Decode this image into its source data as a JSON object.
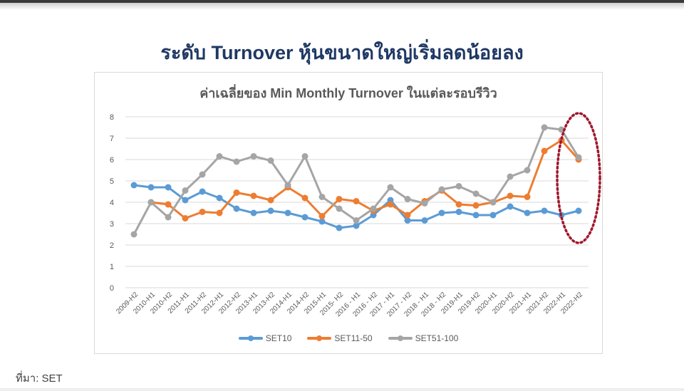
{
  "slide": {
    "title": "ระดับ Turnover หุ้นขนาดใหญ่เริ่มลดน้อยลง",
    "source": "ที่มา: SET",
    "title_color": "#1f3864"
  },
  "chart_data": {
    "type": "line",
    "title": "ค่าเฉลี่ยของ Min Monthly Turnover ในแต่ละรอบรีวิว",
    "xlabel": "",
    "ylabel": "",
    "ylim": [
      0,
      8
    ],
    "yticks": [
      0,
      1,
      2,
      3,
      4,
      5,
      6,
      7,
      8
    ],
    "grid": true,
    "legend_position": "bottom",
    "categories": [
      "2009-H2",
      "2010-H1",
      "2010-H2",
      "2011-H1",
      "2011-H2",
      "2012-H1",
      "2012-H2",
      "2013-H1",
      "2013-H2",
      "2014-H1",
      "2014-H2",
      "2015-H1",
      "2015- H2",
      "2016 - H1",
      "2016 - H2",
      "2017 - H1",
      "2017 - H2",
      "2018 - H1",
      "2018 - H2",
      "2019-H1",
      "2019-H2",
      "2020-H1",
      "2020-H2",
      "2021-H1",
      "2021-H2",
      "2022-H1",
      "2022-H2"
    ],
    "series": [
      {
        "name": "SET10",
        "color": "#5b9bd5",
        "values": [
          4.8,
          4.7,
          4.7,
          4.1,
          4.5,
          4.2,
          3.7,
          3.5,
          3.6,
          3.5,
          3.3,
          3.1,
          2.8,
          2.9,
          3.4,
          4.1,
          3.15,
          3.15,
          3.5,
          3.55,
          3.4,
          3.4,
          3.8,
          3.5,
          3.6,
          3.4,
          3.6
        ]
      },
      {
        "name": "SET11-50",
        "color": "#ed7d31",
        "values": [
          null,
          4.0,
          3.9,
          3.25,
          3.55,
          3.5,
          4.45,
          4.3,
          4.1,
          4.7,
          4.2,
          3.35,
          4.15,
          4.05,
          3.6,
          3.9,
          3.4,
          4.05,
          4.55,
          3.9,
          3.85,
          4.0,
          4.3,
          4.25,
          6.4,
          6.9,
          6.0
        ]
      },
      {
        "name": "SET51-100",
        "color": "#a5a5a5",
        "values": [
          2.5,
          4.0,
          3.3,
          4.55,
          5.3,
          6.15,
          5.9,
          6.15,
          5.95,
          4.8,
          6.15,
          4.25,
          3.7,
          3.15,
          3.7,
          4.7,
          4.15,
          3.95,
          4.6,
          4.75,
          4.4,
          4.0,
          5.2,
          5.5,
          7.5,
          7.4,
          6.1
        ]
      }
    ],
    "annotations": [
      {
        "type": "dotted-ellipse",
        "color": "#a0182d",
        "around": [
          "2022-H1",
          "2022-H2"
        ]
      }
    ]
  }
}
